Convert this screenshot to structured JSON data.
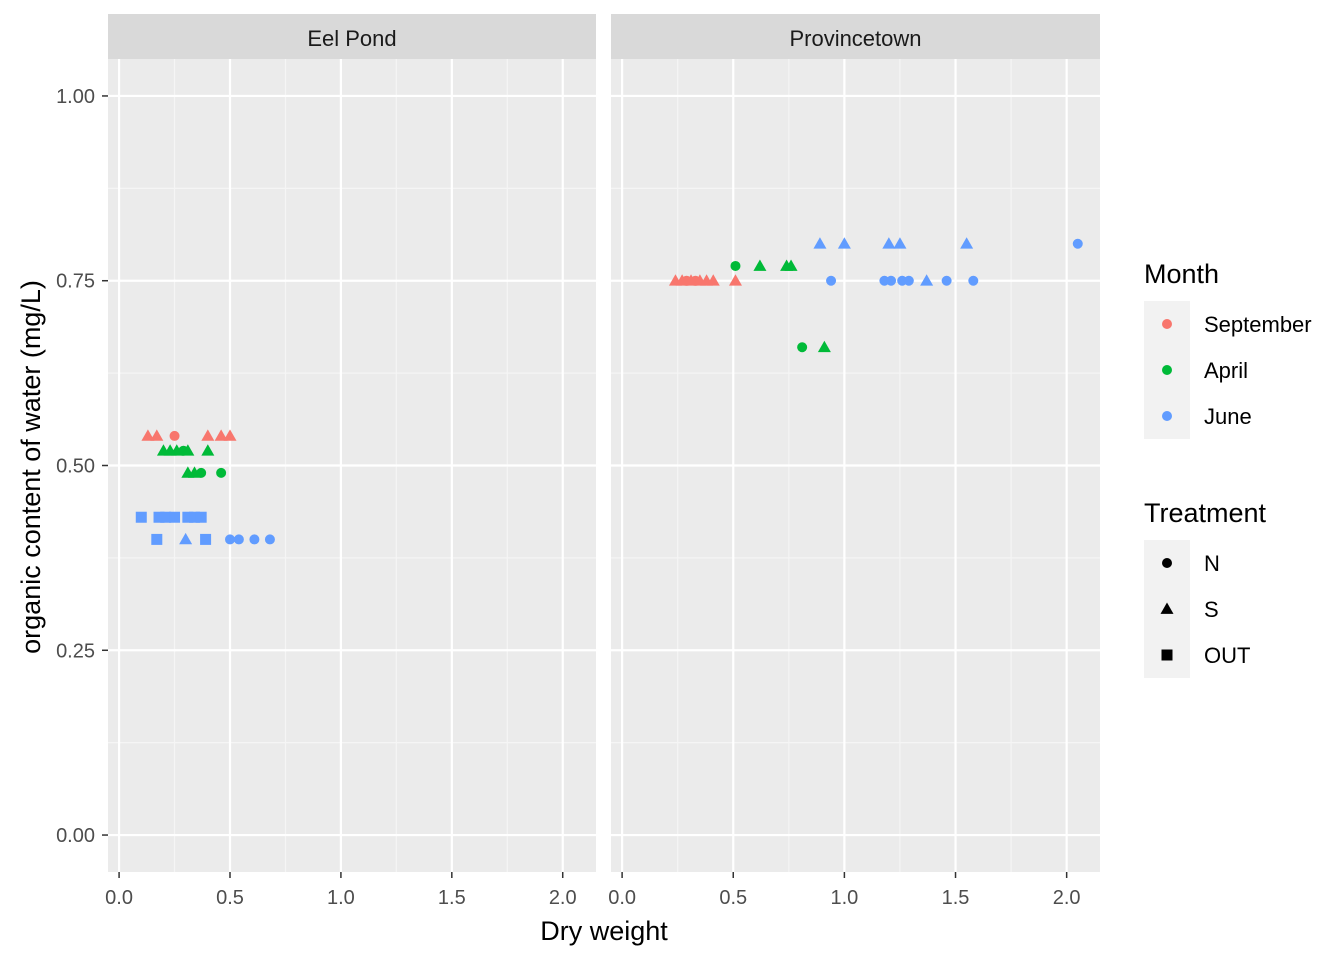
{
  "chart_data": {
    "type": "scatter",
    "xlabel": "Dry weight",
    "ylabel": "organic content of water (mg/L)",
    "xlim": [
      -0.05,
      2.15
    ],
    "ylim": [
      -0.05,
      1.05
    ],
    "x_ticks": [
      {
        "value": 0.0,
        "label": "0.0"
      },
      {
        "value": 0.5,
        "label": "0.5"
      },
      {
        "value": 1.0,
        "label": "1.0"
      },
      {
        "value": 1.5,
        "label": "1.5"
      },
      {
        "value": 2.0,
        "label": "2.0"
      }
    ],
    "y_ticks": [
      {
        "value": 0.0,
        "label": "0.00"
      },
      {
        "value": 0.25,
        "label": "0.25"
      },
      {
        "value": 0.5,
        "label": "0.50"
      },
      {
        "value": 0.75,
        "label": "0.75"
      },
      {
        "value": 1.0,
        "label": "1.00"
      }
    ],
    "grid": true,
    "legend_position": "right",
    "month_legend": {
      "title": "Month",
      "items": [
        {
          "label": "September",
          "color": "#F8766D"
        },
        {
          "label": "April",
          "color": "#00BA38"
        },
        {
          "label": "June",
          "color": "#619CFF"
        }
      ]
    },
    "treatment_legend": {
      "title": "Treatment",
      "items": [
        {
          "label": "N",
          "shape": "circle"
        },
        {
          "label": "S",
          "shape": "triangle"
        },
        {
          "label": "OUT",
          "shape": "square"
        }
      ]
    },
    "panels": [
      {
        "name": "Eel Pond",
        "points": [
          {
            "x": 0.13,
            "y": 0.54,
            "month": "September",
            "treatment": "S"
          },
          {
            "x": 0.17,
            "y": 0.54,
            "month": "September",
            "treatment": "S"
          },
          {
            "x": 0.25,
            "y": 0.54,
            "month": "September",
            "treatment": "N"
          },
          {
            "x": 0.4,
            "y": 0.54,
            "month": "September",
            "treatment": "S"
          },
          {
            "x": 0.46,
            "y": 0.54,
            "month": "September",
            "treatment": "S"
          },
          {
            "x": 0.5,
            "y": 0.54,
            "month": "September",
            "treatment": "S"
          },
          {
            "x": 0.2,
            "y": 0.52,
            "month": "April",
            "treatment": "S"
          },
          {
            "x": 0.23,
            "y": 0.52,
            "month": "April",
            "treatment": "S"
          },
          {
            "x": 0.26,
            "y": 0.52,
            "month": "April",
            "treatment": "S"
          },
          {
            "x": 0.29,
            "y": 0.52,
            "month": "April",
            "treatment": "N"
          },
          {
            "x": 0.31,
            "y": 0.52,
            "month": "April",
            "treatment": "S"
          },
          {
            "x": 0.4,
            "y": 0.52,
            "month": "April",
            "treatment": "S"
          },
          {
            "x": 0.31,
            "y": 0.49,
            "month": "April",
            "treatment": "S"
          },
          {
            "x": 0.34,
            "y": 0.49,
            "month": "April",
            "treatment": "S"
          },
          {
            "x": 0.37,
            "y": 0.49,
            "month": "April",
            "treatment": "N"
          },
          {
            "x": 0.46,
            "y": 0.49,
            "month": "April",
            "treatment": "N"
          },
          {
            "x": 0.1,
            "y": 0.43,
            "month": "June",
            "treatment": "OUT"
          },
          {
            "x": 0.18,
            "y": 0.43,
            "month": "June",
            "treatment": "OUT"
          },
          {
            "x": 0.21,
            "y": 0.43,
            "month": "June",
            "treatment": "OUT"
          },
          {
            "x": 0.25,
            "y": 0.43,
            "month": "June",
            "treatment": "OUT"
          },
          {
            "x": 0.31,
            "y": 0.43,
            "month": "June",
            "treatment": "OUT"
          },
          {
            "x": 0.34,
            "y": 0.43,
            "month": "June",
            "treatment": "OUT"
          },
          {
            "x": 0.37,
            "y": 0.43,
            "month": "June",
            "treatment": "OUT"
          },
          {
            "x": 0.17,
            "y": 0.4,
            "month": "June",
            "treatment": "OUT"
          },
          {
            "x": 0.3,
            "y": 0.4,
            "month": "June",
            "treatment": "S"
          },
          {
            "x": 0.39,
            "y": 0.4,
            "month": "June",
            "treatment": "OUT"
          },
          {
            "x": 0.5,
            "y": 0.4,
            "month": "June",
            "treatment": "N"
          },
          {
            "x": 0.54,
            "y": 0.4,
            "month": "June",
            "treatment": "N"
          },
          {
            "x": 0.61,
            "y": 0.4,
            "month": "June",
            "treatment": "N"
          },
          {
            "x": 0.68,
            "y": 0.4,
            "month": "June",
            "treatment": "N"
          }
        ]
      },
      {
        "name": "Provincetown",
        "points": [
          {
            "x": 0.24,
            "y": 0.75,
            "month": "September",
            "treatment": "S"
          },
          {
            "x": 0.27,
            "y": 0.75,
            "month": "September",
            "treatment": "S"
          },
          {
            "x": 0.29,
            "y": 0.75,
            "month": "September",
            "treatment": "N"
          },
          {
            "x": 0.31,
            "y": 0.75,
            "month": "September",
            "treatment": "S"
          },
          {
            "x": 0.33,
            "y": 0.75,
            "month": "September",
            "treatment": "N"
          },
          {
            "x": 0.35,
            "y": 0.75,
            "month": "September",
            "treatment": "S"
          },
          {
            "x": 0.38,
            "y": 0.75,
            "month": "September",
            "treatment": "S"
          },
          {
            "x": 0.41,
            "y": 0.75,
            "month": "September",
            "treatment": "S"
          },
          {
            "x": 0.51,
            "y": 0.75,
            "month": "September",
            "treatment": "S"
          },
          {
            "x": 0.51,
            "y": 0.77,
            "month": "April",
            "treatment": "N"
          },
          {
            "x": 0.62,
            "y": 0.77,
            "month": "April",
            "treatment": "S"
          },
          {
            "x": 0.74,
            "y": 0.77,
            "month": "April",
            "treatment": "S"
          },
          {
            "x": 0.76,
            "y": 0.77,
            "month": "April",
            "treatment": "S"
          },
          {
            "x": 0.81,
            "y": 0.66,
            "month": "April",
            "treatment": "N"
          },
          {
            "x": 0.91,
            "y": 0.66,
            "month": "April",
            "treatment": "S"
          },
          {
            "x": 0.89,
            "y": 0.8,
            "month": "June",
            "treatment": "S"
          },
          {
            "x": 1.0,
            "y": 0.8,
            "month": "June",
            "treatment": "S"
          },
          {
            "x": 1.2,
            "y": 0.8,
            "month": "June",
            "treatment": "S"
          },
          {
            "x": 1.25,
            "y": 0.8,
            "month": "June",
            "treatment": "S"
          },
          {
            "x": 1.55,
            "y": 0.8,
            "month": "June",
            "treatment": "S"
          },
          {
            "x": 2.05,
            "y": 0.8,
            "month": "June",
            "treatment": "N"
          },
          {
            "x": 0.94,
            "y": 0.75,
            "month": "June",
            "treatment": "N"
          },
          {
            "x": 1.18,
            "y": 0.75,
            "month": "June",
            "treatment": "N"
          },
          {
            "x": 1.21,
            "y": 0.75,
            "month": "June",
            "treatment": "N"
          },
          {
            "x": 1.26,
            "y": 0.75,
            "month": "June",
            "treatment": "N"
          },
          {
            "x": 1.29,
            "y": 0.75,
            "month": "June",
            "treatment": "N"
          },
          {
            "x": 1.37,
            "y": 0.75,
            "month": "June",
            "treatment": "S"
          },
          {
            "x": 1.46,
            "y": 0.75,
            "month": "June",
            "treatment": "N"
          },
          {
            "x": 1.58,
            "y": 0.75,
            "month": "June",
            "treatment": "N"
          }
        ]
      }
    ]
  }
}
